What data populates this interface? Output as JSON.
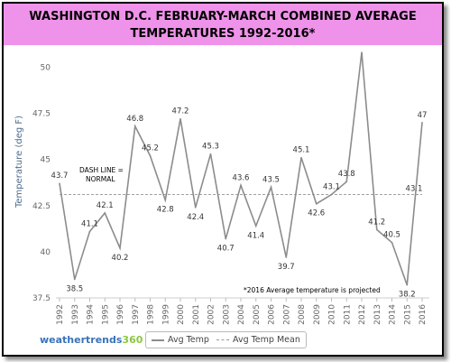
{
  "title_lines": [
    "WASHINGTON D.C. FEBRUARY-MARCH COMBINED AVERAGE",
    "TEMPERATURES 1992-2016*"
  ],
  "annotations": {
    "dash_line_1": "DASH LINE =",
    "dash_line_2": "NORMAL",
    "projected_note": "*2016 Average temperature is projected"
  },
  "legend": {
    "avg_temp": "Avg Temp",
    "avg_temp_mean": "Avg Temp Mean"
  },
  "logo": {
    "brand_word": "weathertrends",
    "brand_num": "360"
  },
  "colors": {
    "title_band": "#ef92e9",
    "line": "#8c8c8c",
    "mean_line": "#a0a0a0",
    "logo_blue": "#3a73b8",
    "logo_green": "#8cc63f"
  },
  "chart_data": {
    "type": "line",
    "ylabel": "Temperature (deg F)",
    "xlabel": "",
    "ylim": [
      37.5,
      51
    ],
    "yticks": [
      37.5,
      40,
      42.5,
      45,
      47.5,
      50
    ],
    "ytick_labels": [
      "37.5",
      "40",
      "42.5",
      "45",
      "47.5",
      "50"
    ],
    "categories": [
      "1992",
      "1993",
      "1994",
      "1995",
      "1996",
      "1997",
      "1998",
      "1999",
      "2000",
      "2001",
      "2002",
      "2003",
      "2004",
      "2005",
      "2006",
      "2007",
      "2008",
      "2009",
      "2010",
      "2011",
      "2012",
      "2013",
      "2014",
      "2015",
      "2016"
    ],
    "series": [
      {
        "name": "Avg Temp",
        "values": [
          43.7,
          38.5,
          41.1,
          42.1,
          40.2,
          46.8,
          45.2,
          42.8,
          47.2,
          42.4,
          45.3,
          40.7,
          43.6,
          41.4,
          43.5,
          39.7,
          45.1,
          42.6,
          43.1,
          43.8,
          50.8,
          41.2,
          40.5,
          38.2,
          47
        ],
        "data_labels": [
          "43.7",
          "38.5",
          "41.1",
          "42.1",
          "40.2",
          "46.8",
          "45.2",
          "42.8",
          "47.2",
          "42.4",
          "45.3",
          "40.7",
          "43.6",
          "41.4",
          "43.5",
          "39.7",
          "45.1",
          "42.6",
          "43.1",
          "43.8",
          "",
          "41.2",
          "40.5",
          "38.2",
          "47"
        ]
      },
      {
        "name": "Avg Temp Mean",
        "value": 43.1,
        "label": "43.1"
      }
    ],
    "grid": false,
    "legend_position": "bottom-center"
  }
}
